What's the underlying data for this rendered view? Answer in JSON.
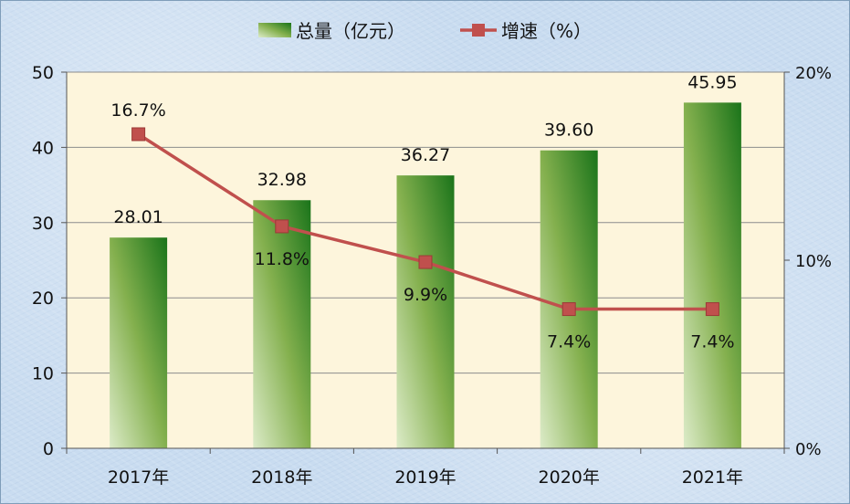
{
  "chart_data": {
    "type": "bar",
    "categories": [
      "2017年",
      "2018年",
      "2019年",
      "2020年",
      "2021年"
    ],
    "series": [
      {
        "name": "总量（亿元）",
        "type": "bar",
        "axis": "left",
        "values": [
          28.01,
          32.98,
          36.27,
          39.6,
          45.95
        ],
        "labels": [
          "28.01",
          "32.98",
          "36.27",
          "39.60",
          "45.95"
        ]
      },
      {
        "name": "增速（%）",
        "type": "line",
        "axis": "right",
        "values": [
          16.7,
          11.8,
          9.9,
          7.4,
          7.4
        ],
        "labels": [
          "16.7%",
          "11.8%",
          "9.9%",
          "7.4%",
          "7.4%"
        ]
      }
    ],
    "y_left": {
      "ylim": [
        0,
        50
      ],
      "ticks": [
        "0",
        "10",
        "20",
        "30",
        "40",
        "50"
      ]
    },
    "y_right": {
      "ylim": [
        0,
        20
      ],
      "ticks": [
        "0%",
        "10%",
        "20%"
      ]
    },
    "grid": true,
    "legend_position": "top-center",
    "colors": {
      "bar_dark": "#1e7a1e",
      "bar_mid": "#7fae4a",
      "bar_light": "#cfe3b8",
      "line": "#c0504d",
      "plot_bg": "#fdf5dc",
      "grid": "#8c8c8c"
    }
  }
}
